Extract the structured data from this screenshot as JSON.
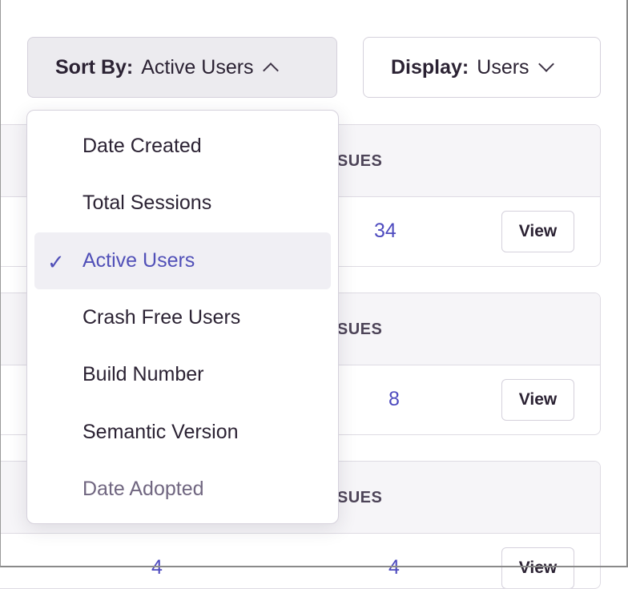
{
  "sort": {
    "label": "Sort By:",
    "value": "Active Users",
    "icon": "chevron-up-icon"
  },
  "display": {
    "label": "Display:",
    "value": "Users",
    "icon": "chevron-down-icon"
  },
  "menu": {
    "items": [
      {
        "label": "Date Created",
        "selected": false
      },
      {
        "label": "Total Sessions",
        "selected": false
      },
      {
        "label": "Active Users",
        "selected": true
      },
      {
        "label": "Crash Free Users",
        "selected": false
      },
      {
        "label": "Build Number",
        "selected": false
      },
      {
        "label": "Semantic Version",
        "selected": false
      },
      {
        "label": "Date Adopted",
        "selected": false,
        "disabled": true
      }
    ],
    "check": "✓"
  },
  "panels": [
    {
      "header": "ISSUES",
      "issues": "34",
      "view": "View"
    },
    {
      "header": "ISSUES",
      "issues": "8",
      "view": "View"
    },
    {
      "header": "ISSUES",
      "left_value": "4",
      "issues": "4",
      "view": "View"
    }
  ],
  "colors": {
    "accent": "#5150b8",
    "selected_bg": "#f0eff4"
  }
}
